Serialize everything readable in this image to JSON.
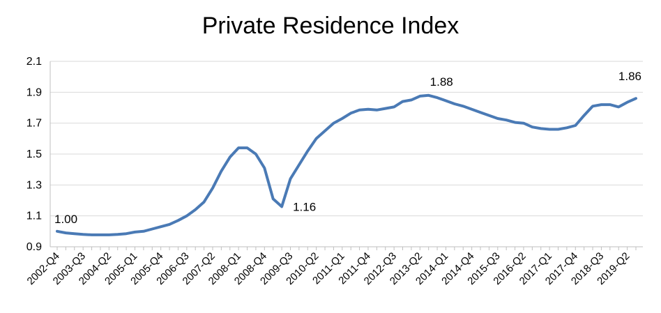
{
  "chart_data": {
    "type": "line",
    "title": "Private Residence Index",
    "xlabel": "",
    "ylabel": "",
    "ylim": [
      0.9,
      2.1
    ],
    "yticks": [
      "0.9",
      "1.1",
      "1.3",
      "1.5",
      "1.7",
      "1.9",
      "2.1"
    ],
    "grid": "horizontal",
    "color": "#4a7ab5",
    "tick_labels": [
      "2002-Q4",
      "2003-Q3",
      "2004-Q2",
      "2005-Q1",
      "2005-Q4",
      "2006-Q3",
      "2007-Q2",
      "2008-Q1",
      "2008-Q4",
      "2009-Q3",
      "2010-Q2",
      "2011-Q1",
      "2011-Q4",
      "2012-Q3",
      "2013-Q2",
      "2014-Q1",
      "2014-Q4",
      "2015-Q3",
      "2016-Q2",
      "2017-Q1",
      "2017-Q4",
      "2018-Q3",
      "2019-Q2"
    ],
    "series": [
      {
        "name": "Private Residence Index",
        "values": [
          1.0,
          0.99,
          0.985,
          0.98,
          0.977,
          0.977,
          0.977,
          0.98,
          0.985,
          0.995,
          1.0,
          1.015,
          1.03,
          1.045,
          1.07,
          1.1,
          1.14,
          1.19,
          1.28,
          1.39,
          1.48,
          1.54,
          1.54,
          1.5,
          1.41,
          1.21,
          1.16,
          1.34,
          1.43,
          1.52,
          1.6,
          1.65,
          1.7,
          1.73,
          1.765,
          1.785,
          1.79,
          1.785,
          1.795,
          1.805,
          1.84,
          1.85,
          1.875,
          1.88,
          1.865,
          1.845,
          1.825,
          1.81,
          1.79,
          1.77,
          1.75,
          1.73,
          1.72,
          1.705,
          1.7,
          1.675,
          1.665,
          1.66,
          1.66,
          1.67,
          1.685,
          1.75,
          1.81,
          1.82,
          1.82,
          1.805,
          1.835,
          1.86
        ]
      }
    ],
    "annotations": [
      {
        "text": "1.00",
        "index": 0
      },
      {
        "text": "1.16",
        "index": 26
      },
      {
        "text": "1.88",
        "index": 43
      },
      {
        "text": "1.86",
        "index": 67
      }
    ]
  }
}
